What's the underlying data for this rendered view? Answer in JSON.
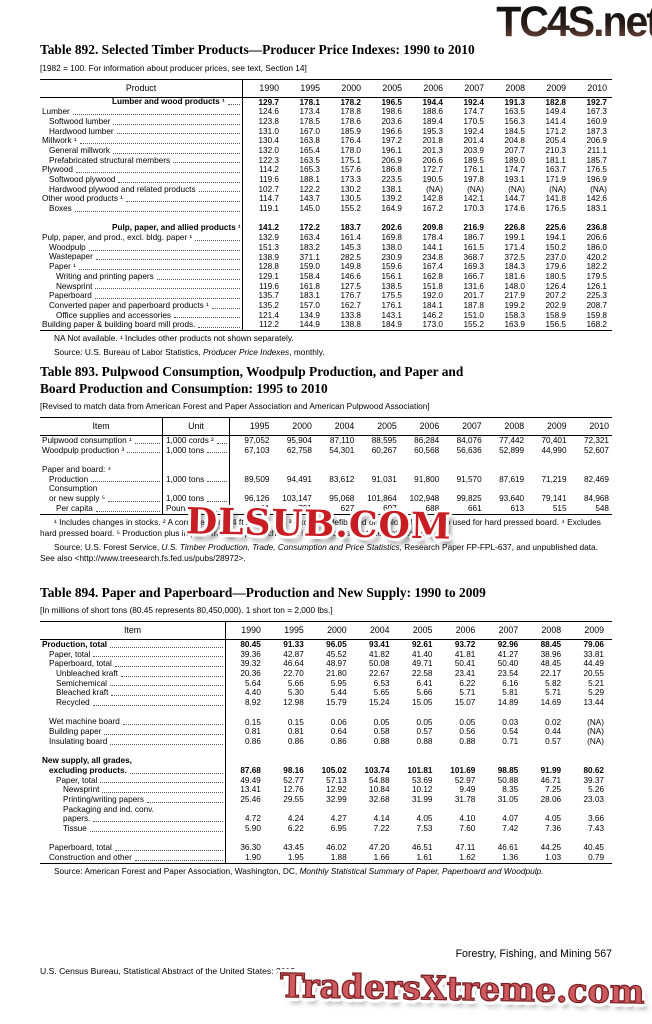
{
  "watermarks": {
    "top": "TC4S.net",
    "middle": "DLSUB.COM",
    "bottom": "TradersXtreme.com",
    "top_color_start": "#151313",
    "top_color_end": "#70453a",
    "middle_color": "#c81d22",
    "bottom_color": "#cd5a5f"
  },
  "page": {
    "footer_right": "Forestry, Fishing, and Mining  567",
    "footer_left": "U.S. Census Bureau, Statistical Abstract of the United States: 2012"
  },
  "tables": [
    {
      "id": "t892",
      "title_lines": [
        "Table 892. Selected Timber Products—Producer Price Indexes: 1990 to 2010"
      ],
      "bracket_note": "[1982 = 100. For information about producer prices, see text, Section 14]",
      "label_header": "Product",
      "unit_header": null,
      "years": [
        "1990",
        "1995",
        "2000",
        "2005",
        "2006",
        "2007",
        "2008",
        "2009",
        "2010"
      ],
      "rows": [
        {
          "label": "Lumber and wood products ¹",
          "head": true,
          "bold": true,
          "values": [
            "129.7",
            "178.1",
            "178.2",
            "196.5",
            "194.4",
            "192.4",
            "191.3",
            "182.8",
            "192.7"
          ]
        },
        {
          "label": "Lumber",
          "lvl": 0,
          "values": [
            "124.6",
            "173.4",
            "178.8",
            "198.6",
            "188.6",
            "174.7",
            "163.5",
            "149.4",
            "167.3"
          ]
        },
        {
          "label": "Softwood lumber",
          "lvl": 1,
          "values": [
            "123.8",
            "178.5",
            "178.6",
            "203.6",
            "189.4",
            "170.5",
            "156.3",
            "141.4",
            "160.9"
          ]
        },
        {
          "label": "Hardwood lumber",
          "lvl": 1,
          "values": [
            "131.0",
            "167.0",
            "185.9",
            "196.6",
            "195.3",
            "192.4",
            "184.5",
            "171.2",
            "187.3"
          ]
        },
        {
          "label": "Millwork ¹",
          "lvl": 0,
          "values": [
            "130.4",
            "163.8",
            "176.4",
            "197.2",
            "201.8",
            "201.4",
            "204.8",
            "205.4",
            "206.9"
          ]
        },
        {
          "label": "General millwork",
          "lvl": 1,
          "values": [
            "132.0",
            "165.4",
            "178.0",
            "196.1",
            "201.3",
            "203.9",
            "207.7",
            "210.3",
            "211.1"
          ]
        },
        {
          "label": "Prefabricated structural members",
          "lvl": 1,
          "values": [
            "122.3",
            "163.5",
            "175.1",
            "206.9",
            "206.6",
            "189.5",
            "189.0",
            "181.1",
            "185.7"
          ]
        },
        {
          "label": "Plywood",
          "lvl": 0,
          "values": [
            "114.2",
            "165.3",
            "157.6",
            "186.8",
            "172.7",
            "176.1",
            "174.7",
            "163.7",
            "176.5"
          ]
        },
        {
          "label": "Softwood plywood",
          "lvl": 1,
          "values": [
            "119.6",
            "188.1",
            "173.3",
            "223.5",
            "190.5",
            "197.8",
            "193.1",
            "171.9",
            "196.9"
          ]
        },
        {
          "label": "Hardwood plywood and related products",
          "lvl": 1,
          "values": [
            "102.7",
            "122.2",
            "130.2",
            "138.1",
            "(NA)",
            "(NA)",
            "(NA)",
            "(NA)",
            "(NA)"
          ]
        },
        {
          "label": "Other wood products ¹",
          "lvl": 0,
          "values": [
            "114.7",
            "143.7",
            "130.5",
            "139.2",
            "142.8",
            "142.1",
            "144.7",
            "141.8",
            "142.6"
          ]
        },
        {
          "label": "Boxes",
          "lvl": 1,
          "values": [
            "119.1",
            "145.0",
            "155.2",
            "164.9",
            "167.2",
            "170.3",
            "174.6",
            "176.5",
            "183.1"
          ]
        },
        {
          "gap": true
        },
        {
          "label": "Pulp, paper, and allied products ¹",
          "head": true,
          "bold": true,
          "values": [
            "141.2",
            "172.2",
            "183.7",
            "202.6",
            "209.8",
            "216.9",
            "226.8",
            "225.6",
            "236.8"
          ]
        },
        {
          "label": "Pulp, paper, and prod., excl. bldg. paper ¹",
          "lvl": 0,
          "values": [
            "132.9",
            "163.4",
            "161.4",
            "169.8",
            "178.4",
            "186.7",
            "199.1",
            "194.1",
            "206.6"
          ]
        },
        {
          "label": "Woodpulp",
          "lvl": 1,
          "values": [
            "151.3",
            "183.2",
            "145.3",
            "138.0",
            "144.1",
            "161.5",
            "171.4",
            "150.2",
            "186.0"
          ]
        },
        {
          "label": "Wastepaper",
          "lvl": 1,
          "values": [
            "138.9",
            "371.1",
            "282.5",
            "230.9",
            "234.8",
            "368.7",
            "372.5",
            "237.0",
            "420.2"
          ]
        },
        {
          "label": "Paper ¹",
          "lvl": 1,
          "values": [
            "128.8",
            "159.0",
            "149.8",
            "159.6",
            "167.4",
            "169.3",
            "184.3",
            "179.6",
            "182.2"
          ]
        },
        {
          "label": "Writing and printing papers",
          "lvl": 2,
          "values": [
            "129.1",
            "158.4",
            "146.6",
            "156.1",
            "162.8",
            "166.7",
            "181.6",
            "180.5",
            "179.5"
          ]
        },
        {
          "label": "Newsprint",
          "lvl": 2,
          "values": [
            "119.6",
            "161.8",
            "127.5",
            "138.5",
            "151.8",
            "131.6",
            "148.0",
            "126.4",
            "126.1"
          ]
        },
        {
          "label": "Paperboard",
          "lvl": 1,
          "values": [
            "135.7",
            "183.1",
            "176.7",
            "175.5",
            "192.0",
            "201.7",
            "217.9",
            "207.2",
            "225.3"
          ]
        },
        {
          "label": "Converted paper and paperboard products ¹",
          "lvl": 1,
          "values": [
            "135.2",
            "157.0",
            "162.7",
            "176.1",
            "184.1",
            "187.8",
            "199.2",
            "202.9",
            "208.7"
          ]
        },
        {
          "label": "Office supplies and accessories",
          "lvl": 2,
          "values": [
            "121.4",
            "134.9",
            "133.8",
            "143.1",
            "146.2",
            "151.0",
            "158.3",
            "158.9",
            "159.8"
          ]
        },
        {
          "label": "Building paper & building board mill prods.",
          "lvl": 0,
          "values": [
            "112.2",
            "144.9",
            "138.8",
            "184.9",
            "173.0",
            "155.2",
            "163.9",
            "156.5",
            "168.2"
          ]
        }
      ],
      "footnote": "NA Not available. ¹ Includes other products not shown separately.",
      "source_segments": [
        {
          "t": "Source: U.S. Bureau of Labor Statistics, ",
          "i": false
        },
        {
          "t": "Producer Price Indexes",
          "i": true
        },
        {
          "t": ", monthly.",
          "i": false
        }
      ]
    },
    {
      "id": "t893",
      "title_lines": [
        "Table 893. Pulpwood Consumption, Woodpulp Production, and Paper and",
        "Board Production and Consumption: 1995 to 2010"
      ],
      "bracket_note": "[Revised to match data from American Forest and Paper Association and American Pulpwood Association]",
      "label_header": "Item",
      "unit_header": "Unit",
      "years": [
        "1995",
        "2000",
        "2004",
        "2005",
        "2006",
        "2007",
        "2008",
        "2009",
        "2010"
      ],
      "rows": [
        {
          "label": "Pulpwood consumption ¹",
          "lvl": 0,
          "unit": "1,000 cords ²",
          "values": [
            "97,052",
            "95,904",
            "87,110",
            "88,595",
            "86,284",
            "84,076",
            "77,442",
            "70,401",
            "72,321"
          ]
        },
        {
          "label": "Woodpulp production ³",
          "lvl": 0,
          "unit": "1,000 tons",
          "values": [
            "67,103",
            "62,758",
            "54,301",
            "60,267",
            "60,568",
            "56,636",
            "52,899",
            "44,990",
            "52,607"
          ]
        },
        {
          "gap": true
        },
        {
          "label": "Paper and board: ⁴",
          "lvl": 0
        },
        {
          "label": "Production",
          "lvl": 1,
          "unit": "1,000 tons",
          "values": [
            "89,509",
            "94,491",
            "83,612",
            "91,031",
            "91,800",
            "91,570",
            "87,619",
            "71,219",
            "82,469"
          ]
        },
        {
          "label": "Consumption",
          "lvl": 1
        },
        {
          "label": "or new supply ⁵",
          "lvl": 1,
          "unit": "1,000 tons",
          "values": [
            "96,126",
            "103,147",
            "95,068",
            "101,864",
            "102,948",
            "99,825",
            "93,640",
            "79,141",
            "84,968"
          ]
        },
        {
          "label": "Per capita",
          "lvl": 2,
          "unit": "Pounds",
          "values": [
            "731",
            "731",
            "627",
            "697",
            "688",
            "661",
            "613",
            "515",
            "548"
          ]
        }
      ],
      "footnote": "¹ Includes changes in stocks. ² A cord measures 4 ft x 4 ft x 8 ft. ³ Excludes defibrated or exploded woodpulp used for hard pressed board. ⁴ Excludes hard pressed board. ⁵ Production plus imports minus exports; changes in inventories not taken into account.",
      "source_segments": [
        {
          "t": "Source: U.S. Forest Service, ",
          "i": false
        },
        {
          "t": "U.S. Timber Production, Trade, Consumption and Price Statistics,",
          "i": true
        },
        {
          "t": " Research Paper FP-FPL-637, and unpublished data. See also <http://www.treesearch.fs.fed.us/pubs/28972>.",
          "i": false
        }
      ]
    },
    {
      "id": "t894",
      "title_lines": [
        "Table 894. Paper and Paperboard—Production and New Supply: 1990 to 2009"
      ],
      "bracket_note": "[In millions of short tons (80.45 represents 80,450,000). 1 short ton = 2,000 lbs.]",
      "label_header": "Item",
      "unit_header": null,
      "years": [
        "1990",
        "1995",
        "2000",
        "2004",
        "2005",
        "2006",
        "2007",
        "2008",
        "2009"
      ],
      "rows": [
        {
          "label": "Production, total",
          "lvl": 0,
          "bold": true,
          "values": [
            "80.45",
            "91.33",
            "96.05",
            "93.41",
            "92.61",
            "93.72",
            "92.96",
            "88.45",
            "79.06"
          ]
        },
        {
          "label": "Paper, total",
          "lvl": 1,
          "values": [
            "39.36",
            "42.87",
            "45.52",
            "41.82",
            "41.40",
            "41.81",
            "41.27",
            "38.96",
            "33.81"
          ]
        },
        {
          "label": "Paperboard, total",
          "lvl": 1,
          "values": [
            "39.32",
            "46.64",
            "48.97",
            "50.08",
            "49.71",
            "50.41",
            "50.40",
            "48.45",
            "44.49"
          ]
        },
        {
          "label": "Unbleached kraft",
          "lvl": 2,
          "values": [
            "20.36",
            "22.70",
            "21.80",
            "22.67",
            "22.58",
            "23.41",
            "23.54",
            "22.17",
            "20.55"
          ]
        },
        {
          "label": "Semichemical",
          "lvl": 2,
          "values": [
            "5.64",
            "5.66",
            "5.95",
            "6.53",
            "6.41",
            "6.22",
            "6.16",
            "5.82",
            "5.21"
          ]
        },
        {
          "label": "Bleached kraft",
          "lvl": 2,
          "values": [
            "4.40",
            "5.30",
            "5.44",
            "5.65",
            "5.66",
            "5.71",
            "5.81",
            "5.71",
            "5.29"
          ]
        },
        {
          "label": "Recycled",
          "lvl": 2,
          "values": [
            "8.92",
            "12.98",
            "15.79",
            "15.24",
            "15.05",
            "15.07",
            "14.89",
            "14.69",
            "13.44"
          ]
        },
        {
          "gap": true
        },
        {
          "label": "Wet machine board",
          "lvl": 1,
          "values": [
            "0.15",
            "0.15",
            "0.06",
            "0.05",
            "0.05",
            "0.05",
            "0.03",
            "0.02",
            "(NA)"
          ]
        },
        {
          "label": "Building paper",
          "lvl": 1,
          "values": [
            "0.81",
            "0.81",
            "0.64",
            "0.58",
            "0.57",
            "0.56",
            "0.54",
            "0.44",
            "(NA)"
          ]
        },
        {
          "label": "Insulating board",
          "lvl": 1,
          "values": [
            "0.86",
            "0.86",
            "0.86",
            "0.88",
            "0.88",
            "0.88",
            "0.71",
            "0.57",
            "(NA)"
          ]
        },
        {
          "gap": true
        },
        {
          "label": "New supply, all grades,",
          "lvl": 0,
          "bold": true
        },
        {
          "label": "excluding products.",
          "lvl": 1,
          "bold": true,
          "values": [
            "87.68",
            "98.16",
            "105.02",
            "103.74",
            "101.81",
            "101.69",
            "98.85",
            "91.99",
            "80.62"
          ]
        },
        {
          "label": "Paper, total",
          "lvl": 2,
          "values": [
            "49.49",
            "52.77",
            "57.13",
            "54.88",
            "53.69",
            "52.97",
            "50.88",
            "46.71",
            "39.37"
          ]
        },
        {
          "label": "Newsprint",
          "lvl": 3,
          "values": [
            "13.41",
            "12.76",
            "12.92",
            "10.84",
            "10.12",
            "9.49",
            "8.35",
            "7.25",
            "5.26"
          ]
        },
        {
          "label": "Printing/writing papers",
          "lvl": 3,
          "values": [
            "25.46",
            "29.55",
            "32.99",
            "32.68",
            "31.99",
            "31.78",
            "31.05",
            "28.06",
            "23.03"
          ]
        },
        {
          "label": "Packaging and ind. conv.",
          "lvl": 3
        },
        {
          "label": "papers.",
          "lvl": 3,
          "values": [
            "4.72",
            "4.24",
            "4.27",
            "4.14",
            "4.05",
            "4.10",
            "4.07",
            "4.05",
            "3.66"
          ]
        },
        {
          "label": "Tissue",
          "lvl": 3,
          "values": [
            "5.90",
            "6.22",
            "6.95",
            "7.22",
            "7.53",
            "7.60",
            "7.42",
            "7.36",
            "7.43"
          ]
        },
        {
          "gap": true
        },
        {
          "label": "Paperboard, total",
          "lvl": 1,
          "values": [
            "36.30",
            "43.45",
            "46.02",
            "47.20",
            "46.51",
            "47.11",
            "46.61",
            "44.25",
            "40.45"
          ]
        },
        {
          "label": "Construction and other",
          "lvl": 1,
          "values": [
            "1.90",
            "1.95",
            "1.88",
            "1.66",
            "1.61",
            "1.62",
            "1.36",
            "1.03",
            "0.79"
          ]
        }
      ],
      "footnote": null,
      "source_segments": [
        {
          "t": "Source: American Forest and Paper Association, Washington, DC, ",
          "i": false
        },
        {
          "t": "Monthly Statistical Summary of Paper, Paperboard and Woodpulp.",
          "i": true
        }
      ]
    }
  ]
}
